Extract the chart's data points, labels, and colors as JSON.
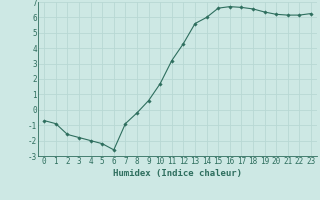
{
  "x": [
    0,
    1,
    2,
    3,
    4,
    5,
    6,
    7,
    8,
    9,
    10,
    11,
    12,
    13,
    14,
    15,
    16,
    17,
    18,
    19,
    20,
    21,
    22,
    23
  ],
  "y": [
    -0.7,
    -0.9,
    -1.6,
    -1.8,
    -2.0,
    -2.2,
    -2.6,
    -0.9,
    -0.2,
    0.6,
    1.7,
    3.2,
    4.3,
    5.6,
    6.0,
    6.6,
    6.7,
    6.65,
    6.55,
    6.35,
    6.2,
    6.15,
    6.15,
    6.25
  ],
  "ylim": [
    -3,
    7
  ],
  "yticks": [
    -3,
    -2,
    -1,
    0,
    1,
    2,
    3,
    4,
    5,
    6,
    7
  ],
  "xticks": [
    0,
    1,
    2,
    3,
    4,
    5,
    6,
    7,
    8,
    9,
    10,
    11,
    12,
    13,
    14,
    15,
    16,
    17,
    18,
    19,
    20,
    21,
    22,
    23
  ],
  "xlabel": "Humidex (Indice chaleur)",
  "line_color": "#2e6e5e",
  "marker": "D",
  "bg_color": "#cde8e4",
  "grid_color": "#b8d8d4",
  "tick_fontsize": 5.5,
  "label_fontsize": 6.5
}
